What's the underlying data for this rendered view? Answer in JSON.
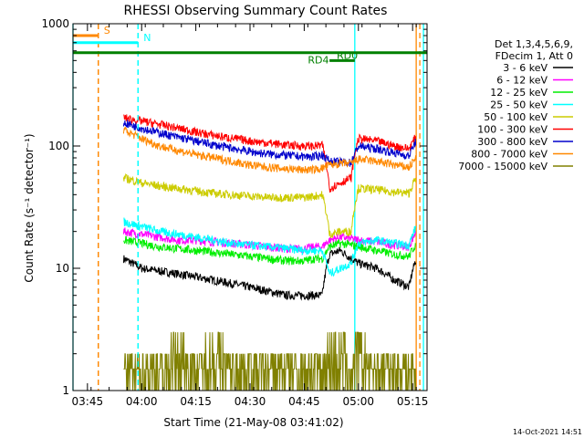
{
  "chart_data": {
    "type": "line",
    "title": "RHESSI Observing Summary Count Rates",
    "xlabel": "Start Time (21-May-08 03:41:02)",
    "ylabel": "Count Rate (s⁻¹ detector⁻¹)",
    "y_scale": "log",
    "ylim": [
      1,
      1000
    ],
    "xlim": [
      "03:41",
      "05:19"
    ],
    "x_ticks": [
      "03:45",
      "04:00",
      "04:15",
      "04:30",
      "04:45",
      "05:00",
      "05:15"
    ],
    "y_ticks": [
      "1",
      "10",
      "100",
      "1000"
    ],
    "legend_header": [
      "Det 1,3,4,5,6,9,",
      "FDecim 1, Att 0"
    ],
    "legend_placement": "right",
    "series": [
      {
        "name": "3 - 6 keV",
        "color": "#000000",
        "x": [
          "03:55",
          "04:00",
          "04:05",
          "04:10",
          "04:15",
          "04:20",
          "04:25",
          "04:30",
          "04:35",
          "04:40",
          "04:45",
          "04:48",
          "04:50",
          "04:52",
          "04:55",
          "04:58",
          "05:00",
          "05:05",
          "05:10",
          "05:14",
          "05:16"
        ],
        "y": [
          12,
          10,
          9.5,
          9,
          8.5,
          8,
          7.5,
          7,
          6.5,
          6,
          6,
          6,
          6,
          13,
          14,
          12,
          11,
          10,
          8,
          7,
          12
        ]
      },
      {
        "name": "6 - 12 keV",
        "color": "#ff00ff",
        "x": [
          "03:55",
          "04:00",
          "04:05",
          "04:10",
          "04:15",
          "04:20",
          "04:25",
          "04:30",
          "04:35",
          "04:40",
          "04:45",
          "04:48",
          "04:50",
          "04:52",
          "04:55",
          "04:58",
          "05:00",
          "05:05",
          "05:10",
          "05:14",
          "05:16"
        ],
        "y": [
          20,
          19,
          18,
          17,
          17,
          16.5,
          16,
          15.5,
          15,
          14.5,
          14.5,
          15,
          15,
          17,
          18,
          17.5,
          17,
          16.5,
          15.5,
          15,
          20
        ]
      },
      {
        "name": "12 - 25 keV",
        "color": "#00ee00",
        "x": [
          "03:55",
          "04:00",
          "04:05",
          "04:10",
          "04:15",
          "04:20",
          "04:25",
          "04:30",
          "04:35",
          "04:40",
          "04:45",
          "04:48",
          "04:50",
          "04:52",
          "04:55",
          "04:58",
          "05:00",
          "05:05",
          "05:10",
          "05:14",
          "05:16"
        ],
        "y": [
          17,
          16,
          15,
          14.5,
          14,
          13.5,
          13,
          12.5,
          12,
          11.5,
          11.5,
          12,
          12,
          15,
          16,
          15.5,
          15,
          14,
          13,
          12.5,
          16
        ]
      },
      {
        "name": "25 - 50 keV",
        "color": "#00ffff",
        "x": [
          "03:55",
          "04:00",
          "04:05",
          "04:10",
          "04:15",
          "04:20",
          "04:25",
          "04:30",
          "04:35",
          "04:40",
          "04:45",
          "04:48",
          "04:50",
          "04:52",
          "04:55",
          "04:58",
          "05:00",
          "05:05",
          "05:10",
          "05:14",
          "05:16"
        ],
        "y": [
          24,
          22,
          20,
          19,
          18,
          17,
          16,
          15.5,
          15,
          14.5,
          14,
          14,
          14,
          9,
          10,
          11,
          16,
          17,
          16,
          15.5,
          22
        ]
      },
      {
        "name": "50 - 100 keV",
        "color": "#cccc00",
        "x": [
          "03:55",
          "04:00",
          "04:05",
          "04:10",
          "04:15",
          "04:20",
          "04:25",
          "04:30",
          "04:35",
          "04:40",
          "04:45",
          "04:48",
          "04:50",
          "04:52",
          "04:55",
          "04:58",
          "05:00",
          "05:05",
          "05:10",
          "05:14",
          "05:16"
        ],
        "y": [
          55,
          50,
          47,
          45,
          43,
          41,
          40,
          39,
          38,
          38,
          38,
          39,
          40,
          19,
          20,
          20,
          45,
          44,
          42,
          41,
          55
        ]
      },
      {
        "name": "100 - 300 keV",
        "color": "#ff0000",
        "x": [
          "03:55",
          "04:00",
          "04:05",
          "04:10",
          "04:15",
          "04:20",
          "04:25",
          "04:30",
          "04:35",
          "04:40",
          "04:45",
          "04:48",
          "04:50",
          "04:52",
          "04:55",
          "04:58",
          "05:00",
          "05:05",
          "05:10",
          "05:14",
          "05:16"
        ],
        "y": [
          170,
          160,
          150,
          140,
          130,
          122,
          116,
          110,
          106,
          102,
          100,
          100,
          102,
          45,
          50,
          55,
          115,
          110,
          100,
          95,
          120
        ]
      },
      {
        "name": "300 - 800 keV",
        "color": "#0000cc",
        "x": [
          "03:55",
          "04:00",
          "04:05",
          "04:10",
          "04:15",
          "04:20",
          "04:25",
          "04:30",
          "04:35",
          "04:40",
          "04:45",
          "04:48",
          "04:50",
          "04:52",
          "04:55",
          "04:58",
          "05:00",
          "05:05",
          "05:10",
          "05:14",
          "05:16"
        ],
        "y": [
          155,
          140,
          128,
          118,
          110,
          102,
          96,
          90,
          86,
          84,
          82,
          82,
          85,
          75,
          74,
          73,
          100,
          95,
          88,
          83,
          110
        ]
      },
      {
        "name": "800 - 7000 keV",
        "color": "#ff8800",
        "x": [
          "03:55",
          "04:00",
          "04:05",
          "04:10",
          "04:15",
          "04:20",
          "04:25",
          "04:30",
          "04:35",
          "04:40",
          "04:45",
          "04:48",
          "04:50",
          "04:52",
          "04:55",
          "04:58",
          "05:00",
          "05:05",
          "05:10",
          "05:14",
          "05:16"
        ],
        "y": [
          135,
          115,
          100,
          92,
          85,
          80,
          75,
          70,
          67,
          65,
          64,
          64,
          66,
          70,
          72,
          72,
          78,
          75,
          70,
          67,
          80
        ]
      },
      {
        "name": "7000 - 15000 keV",
        "color": "#808000",
        "x": [
          "03:55",
          "04:00",
          "04:05",
          "04:10",
          "04:15",
          "04:20",
          "04:25",
          "04:30",
          "04:35",
          "04:40",
          "04:45",
          "04:48",
          "04:50",
          "04:52",
          "04:55",
          "04:58",
          "05:00",
          "05:05",
          "05:10",
          "05:14",
          "05:16"
        ],
        "y": [
          2,
          1.5,
          2,
          3,
          2,
          3,
          2,
          1.5,
          2,
          2,
          2,
          1.5,
          2,
          3,
          3,
          2,
          3,
          2,
          2,
          1.5,
          2
        ]
      }
    ],
    "annotations": [
      {
        "label": "S",
        "color": "#ff8800",
        "bar": [
          "03:41",
          "03:48"
        ],
        "bar_y": 800,
        "line_x": "03:48"
      },
      {
        "label": "N",
        "color": "#00ffff",
        "bar": [
          "03:41",
          "03:59"
        ],
        "bar_y": 700,
        "line_x": "03:59"
      },
      {
        "label": "RD4",
        "color": "#008000",
        "bar": [
          "03:41",
          "05:19"
        ],
        "bar_y": 580
      },
      {
        "label": "RD0",
        "color": "#008000",
        "bar": [
          "04:52",
          "04:59"
        ],
        "bar_y": 500
      }
    ],
    "vlines": [
      {
        "x": "03:41",
        "color": "#00ffff",
        "style": "solid"
      },
      {
        "x": "03:48",
        "color": "#ff8800",
        "style": "dashed"
      },
      {
        "x": "03:59",
        "color": "#00ffff",
        "style": "dashed"
      },
      {
        "x": "04:59",
        "color": "#00ffff",
        "style": "solid"
      },
      {
        "x": "05:16",
        "color": "#ff8800",
        "style": "solid"
      },
      {
        "x": "05:17",
        "color": "#ff8800",
        "style": "dashed"
      },
      {
        "x": "05:18",
        "color": "#00ffff",
        "style": "solid"
      }
    ],
    "timestamp": "14-Oct-2021 14:51"
  }
}
